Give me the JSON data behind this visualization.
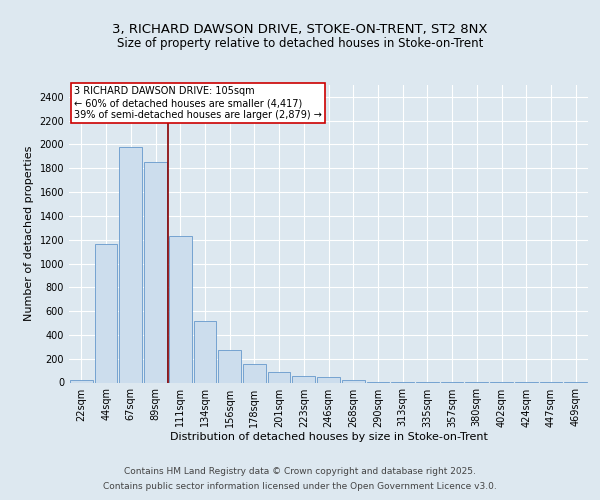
{
  "title_line1": "3, RICHARD DAWSON DRIVE, STOKE-ON-TRENT, ST2 8NX",
  "title_line2": "Size of property relative to detached houses in Stoke-on-Trent",
  "xlabel": "Distribution of detached houses by size in Stoke-on-Trent",
  "ylabel": "Number of detached properties",
  "bar_labels": [
    "22sqm",
    "44sqm",
    "67sqm",
    "89sqm",
    "111sqm",
    "134sqm",
    "156sqm",
    "178sqm",
    "201sqm",
    "223sqm",
    "246sqm",
    "268sqm",
    "290sqm",
    "313sqm",
    "335sqm",
    "357sqm",
    "380sqm",
    "402sqm",
    "424sqm",
    "447sqm",
    "469sqm"
  ],
  "bar_values": [
    25,
    1165,
    1975,
    1850,
    1230,
    520,
    270,
    155,
    90,
    55,
    45,
    18,
    8,
    5,
    3,
    2,
    2,
    1,
    1,
    1,
    3
  ],
  "bar_color": "#ccdded",
  "bar_edge_color": "#6699cc",
  "vline_x_index": 4,
  "vline_color": "#880000",
  "annotation_text": "3 RICHARD DAWSON DRIVE: 105sqm\n← 60% of detached houses are smaller (4,417)\n39% of semi-detached houses are larger (2,879) →",
  "annotation_box_color": "#ffffff",
  "annotation_box_edge": "#cc0000",
  "ylim": [
    0,
    2500
  ],
  "yticks": [
    0,
    200,
    400,
    600,
    800,
    1000,
    1200,
    1400,
    1600,
    1800,
    2000,
    2200,
    2400
  ],
  "bg_color": "#dde8f0",
  "plot_bg_color": "#dde8f0",
  "footer_line1": "Contains HM Land Registry data © Crown copyright and database right 2025.",
  "footer_line2": "Contains public sector information licensed under the Open Government Licence v3.0.",
  "title_fontsize": 9.5,
  "subtitle_fontsize": 8.5,
  "axis_label_fontsize": 8,
  "tick_fontsize": 7,
  "annotation_fontsize": 7,
  "footer_fontsize": 6.5
}
